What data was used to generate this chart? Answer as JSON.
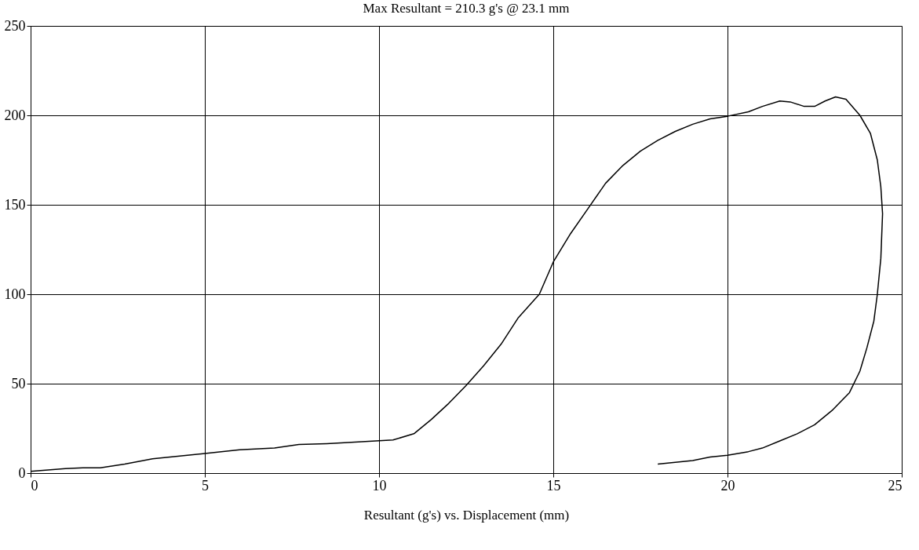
{
  "chart_data": {
    "type": "line",
    "title": "Max Resultant = 210.3 g's @  23.1 mm",
    "xlabel": "Resultant (g's) vs. Displacement (mm)",
    "series": [
      {
        "color": "#000000",
        "x": [
          0,
          1,
          1.5,
          2,
          2.7,
          3.5,
          4,
          4.5,
          5,
          6,
          7,
          7.7,
          8.5,
          9.5,
          10.4,
          11,
          11.5,
          12,
          12.5,
          13,
          13.5,
          14,
          14.6,
          15,
          15.5,
          16,
          16.5,
          17,
          17.5,
          18,
          18.5,
          19,
          19.5,
          20,
          20.6,
          21,
          21.5,
          21.8,
          22.2,
          22.5,
          22.8,
          23.1,
          23.4,
          23.8,
          24.1,
          24.3,
          24.4,
          24.45,
          24.4,
          24.3,
          24.2,
          24,
          23.8,
          23.5,
          23,
          22.5,
          22,
          21.5,
          21,
          20.6,
          20,
          19.5,
          19,
          18.5,
          18
        ],
        "values": [
          1,
          2.5,
          3,
          3,
          5,
          8,
          9,
          10,
          11,
          13,
          14,
          16,
          16.5,
          17.5,
          18.5,
          22,
          30,
          39,
          49,
          60,
          72,
          87,
          100,
          118,
          134,
          148,
          162,
          172,
          180,
          186,
          191,
          195,
          198,
          199.5,
          202,
          205,
          208,
          207.5,
          205,
          205,
          208,
          210.3,
          209,
          200,
          190,
          175,
          160,
          145,
          120,
          100,
          85,
          70,
          57,
          45,
          35,
          27,
          22,
          18,
          14,
          12,
          10,
          9,
          7,
          6,
          5
        ]
      }
    ],
    "xlim": [
      0,
      25
    ],
    "xticks": [
      0,
      5,
      10,
      15,
      20,
      25
    ],
    "ylim": [
      0,
      250
    ],
    "yticks": [
      0,
      50,
      100,
      150,
      200,
      250
    ],
    "grid": true,
    "marker": "none",
    "line_style": "solid"
  }
}
